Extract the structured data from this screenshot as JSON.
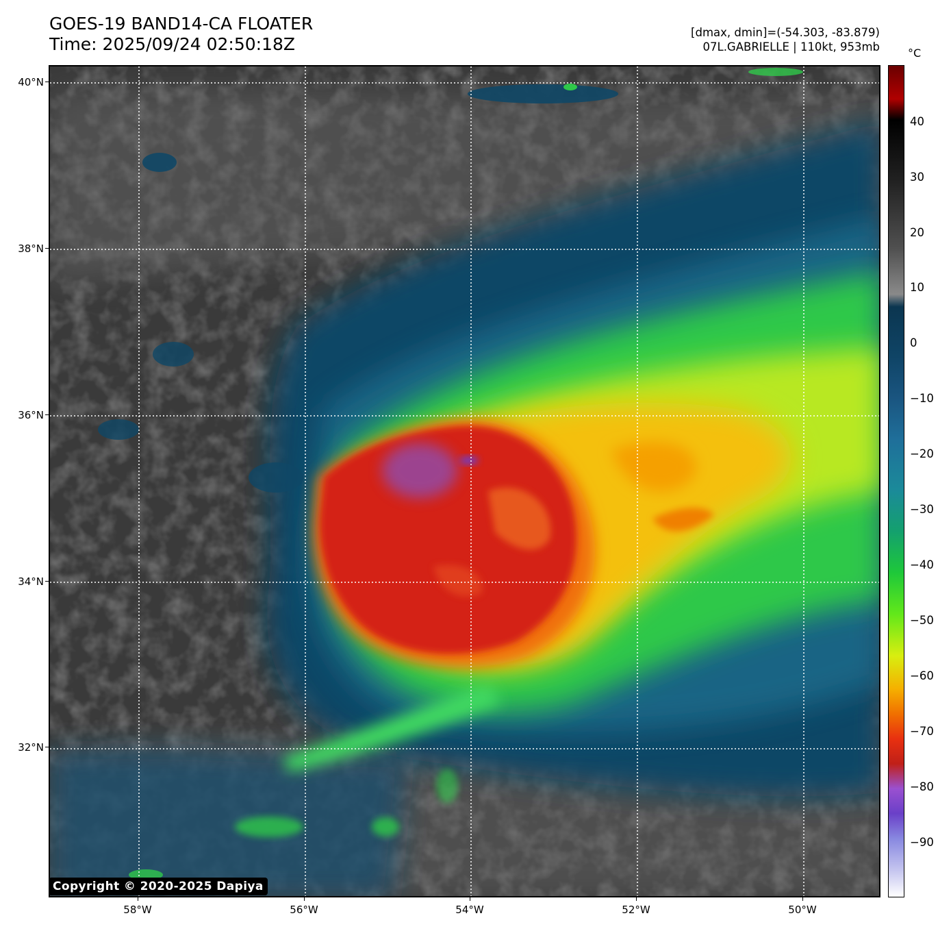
{
  "header": {
    "title_line1": "GOES-19 BAND14-CA FLOATER",
    "title_line2": "Time: 2025/09/24 02:50:18Z",
    "info_line1": "[dmax, dmin]=(-54.303, -83.879)",
    "info_line2": "07L.GABRIELLE | 110kt, 953mb"
  },
  "colorbar": {
    "unit": "°C",
    "ticks": [
      "40",
      "30",
      "20",
      "10",
      "0",
      "−10",
      "−20",
      "−30",
      "−40",
      "−50",
      "−60",
      "−70",
      "−80",
      "−90"
    ]
  },
  "axes": {
    "lat_labels": [
      "40°N",
      "38°N",
      "36°N",
      "34°N",
      "32°N"
    ],
    "lon_labels": [
      "58°W",
      "56°W",
      "54°W",
      "52°W",
      "50°W"
    ]
  },
  "copyright": "Copyright © 2020-2025 Dapiya",
  "colors": {
    "eyewall_red": "#d42418",
    "cold_top_purple": "#9060c8",
    "band_yellow": "#f0c010",
    "band_green": "#30d040",
    "low_cloud_teal": "#0f4a6a",
    "clear_gray": "#3a3a3a"
  }
}
